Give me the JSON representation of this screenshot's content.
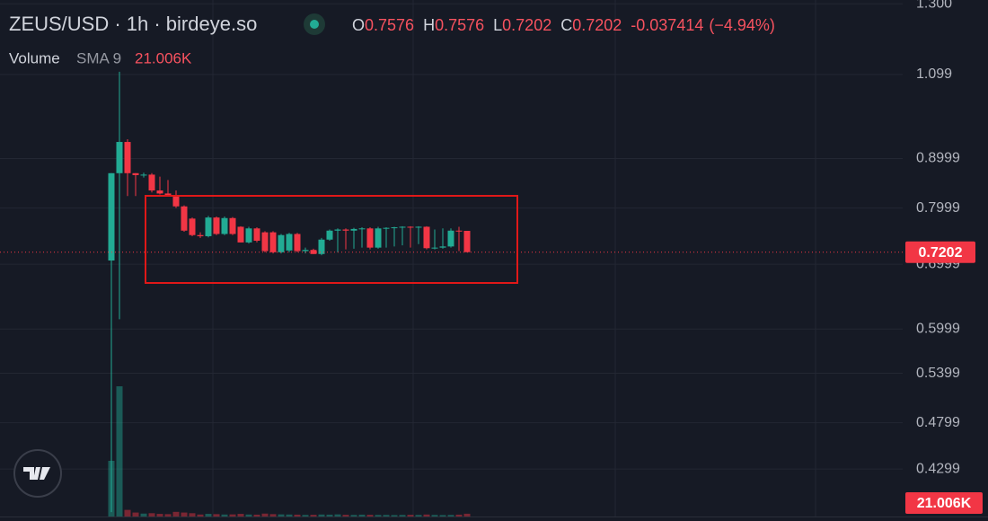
{
  "chart_data": {
    "type": "candlestick",
    "title": "ZEUS/USD · 1h · birdeye.so",
    "ohlc_legend": [
      {
        "label": "O",
        "value": 0.7576
      },
      {
        "label": "H",
        "value": 0.7576
      },
      {
        "label": "L",
        "value": 0.7202
      },
      {
        "label": "C",
        "value": 0.7202
      }
    ],
    "change": -0.037414,
    "change_pct": "(−4.94%)",
    "volume_legend": {
      "name": "Volume",
      "indicator": "SMA 9",
      "value": "21.006K"
    },
    "last_price": 0.7202,
    "log": true,
    "grid": true,
    "up_color": "#22ab94",
    "down_color": "#f23645",
    "ylim": [
      0.384,
      1.312
    ],
    "yticks": [
      {
        "value": 1.3,
        "label": "1.300"
      },
      1.099,
      0.8999,
      0.7999,
      0.6999,
      0.5999,
      0.5399,
      0.4799,
      0.4299
    ],
    "volume_lim": [
      0,
      1050000
    ],
    "open": [
      0.706,
      0.869,
      0.936,
      0.869,
      0.865,
      0.866,
      0.834,
      0.828,
      0.824,
      0.803,
      0.78,
      0.75,
      0.748,
      0.782,
      0.752,
      0.781,
      0.765,
      0.737,
      0.762,
      0.755,
      0.755,
      0.72,
      0.723,
      0.752,
      0.722,
      0.724,
      0.717,
      0.742,
      0.758,
      0.76,
      0.758,
      0.761,
      0.762,
      0.728,
      0.762,
      0.763,
      0.764,
      0.765,
      0.764,
      0.765,
      0.727,
      0.728,
      0.73,
      0.758,
      0.7576
    ],
    "high": [
      0.869,
      1.106,
      0.942,
      0.869,
      0.87,
      0.869,
      0.862,
      0.855,
      0.834,
      0.805,
      0.782,
      0.755,
      0.785,
      0.784,
      0.784,
      0.783,
      0.766,
      0.765,
      0.764,
      0.757,
      0.757,
      0.752,
      0.754,
      0.754,
      0.728,
      0.726,
      0.745,
      0.76,
      0.762,
      0.762,
      0.763,
      0.764,
      0.764,
      0.765,
      0.764,
      0.765,
      0.766,
      0.766,
      0.766,
      0.766,
      0.76,
      0.762,
      0.762,
      0.765,
      0.7576
    ],
    "low": [
      0.388,
      0.614,
      0.823,
      0.823,
      0.86,
      0.83,
      0.826,
      0.822,
      0.8,
      0.756,
      0.748,
      0.745,
      0.746,
      0.75,
      0.75,
      0.75,
      0.737,
      0.735,
      0.737,
      0.72,
      0.718,
      0.718,
      0.72,
      0.72,
      0.718,
      0.717,
      0.715,
      0.74,
      0.72,
      0.725,
      0.726,
      0.728,
      0.725,
      0.726,
      0.728,
      0.73,
      0.732,
      0.728,
      0.734,
      0.725,
      0.725,
      0.726,
      0.728,
      0.722,
      0.7202
    ],
    "close": [
      0.869,
      0.936,
      0.869,
      0.865,
      0.866,
      0.834,
      0.828,
      0.824,
      0.803,
      0.758,
      0.75,
      0.748,
      0.782,
      0.752,
      0.781,
      0.752,
      0.737,
      0.762,
      0.74,
      0.722,
      0.72,
      0.75,
      0.752,
      0.722,
      0.724,
      0.717,
      0.742,
      0.758,
      0.76,
      0.758,
      0.761,
      0.762,
      0.728,
      0.762,
      0.763,
      0.764,
      0.765,
      0.764,
      0.765,
      0.727,
      0.728,
      0.73,
      0.758,
      0.7576,
      0.7202
    ],
    "volume": [
      420000,
      982000,
      50000,
      30000,
      22000,
      25000,
      20000,
      18000,
      35000,
      30000,
      25000,
      15000,
      20000,
      18000,
      15000,
      16000,
      20000,
      15000,
      14000,
      22000,
      18000,
      16000,
      15000,
      14000,
      12000,
      13000,
      15000,
      14000,
      16000,
      13000,
      12000,
      14000,
      13000,
      12000,
      12000,
      11000,
      12000,
      13000,
      12000,
      15000,
      12000,
      11000,
      12000,
      14000,
      21006
    ]
  }
}
